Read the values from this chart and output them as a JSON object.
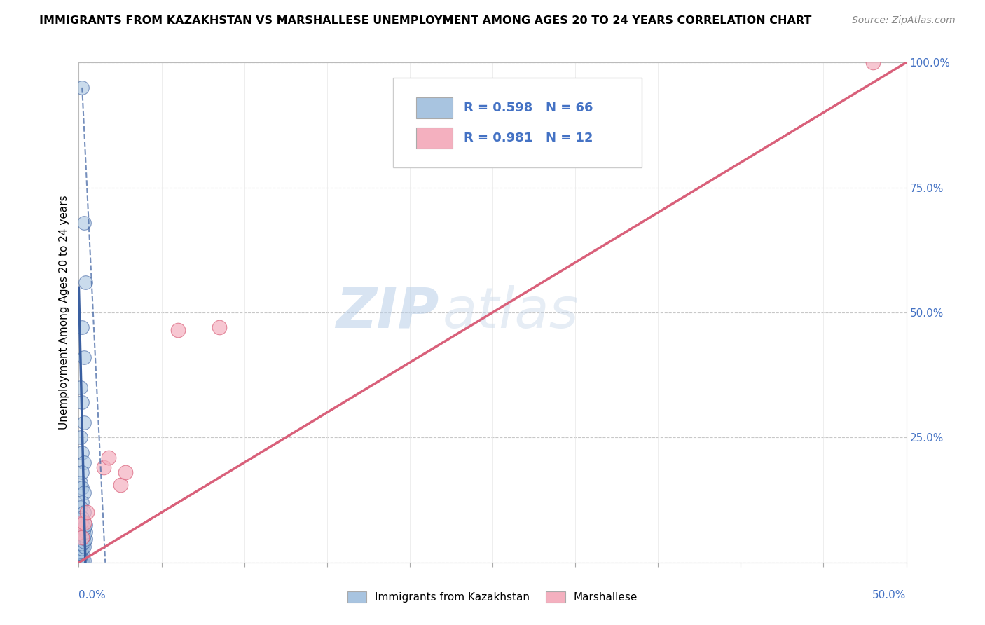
{
  "title": "IMMIGRANTS FROM KAZAKHSTAN VS MARSHALLESE UNEMPLOYMENT AMONG AGES 20 TO 24 YEARS CORRELATION CHART",
  "source": "Source: ZipAtlas.com",
  "xlabel_bottom_left": "0.0%",
  "xlabel_bottom_right": "50.0%",
  "ylabel_label": "Unemployment Among Ages 20 to 24 years",
  "xmin": 0.0,
  "xmax": 0.5,
  "ymin": 0.0,
  "ymax": 1.0,
  "yticks": [
    0.0,
    0.25,
    0.5,
    0.75,
    1.0
  ],
  "ytick_labels": [
    "",
    "25.0%",
    "50.0%",
    "75.0%",
    "100.0%"
  ],
  "legend_r1": "R = 0.598",
  "legend_n1": "N = 66",
  "legend_r2": "R = 0.981",
  "legend_n2": "N = 12",
  "watermark_zip": "ZIP",
  "watermark_atlas": "atlas",
  "blue_color": "#a8c4e0",
  "blue_line_color": "#3a5fa0",
  "pink_color": "#f4b0bf",
  "pink_line_color": "#d9607a",
  "blue_scatter": [
    [
      0.002,
      0.95
    ],
    [
      0.003,
      0.68
    ],
    [
      0.004,
      0.56
    ],
    [
      0.002,
      0.47
    ],
    [
      0.003,
      0.41
    ],
    [
      0.001,
      0.35
    ],
    [
      0.002,
      0.32
    ],
    [
      0.003,
      0.28
    ],
    [
      0.001,
      0.25
    ],
    [
      0.002,
      0.22
    ],
    [
      0.003,
      0.2
    ],
    [
      0.002,
      0.18
    ],
    [
      0.001,
      0.16
    ],
    [
      0.002,
      0.15
    ],
    [
      0.003,
      0.14
    ],
    [
      0.002,
      0.12
    ],
    [
      0.001,
      0.11
    ],
    [
      0.003,
      0.1
    ],
    [
      0.002,
      0.09
    ],
    [
      0.001,
      0.085
    ],
    [
      0.002,
      0.08
    ],
    [
      0.001,
      0.075
    ],
    [
      0.003,
      0.07
    ],
    [
      0.001,
      0.065
    ],
    [
      0.002,
      0.06
    ],
    [
      0.001,
      0.055
    ],
    [
      0.002,
      0.05
    ],
    [
      0.001,
      0.045
    ],
    [
      0.002,
      0.04
    ],
    [
      0.001,
      0.035
    ],
    [
      0.0,
      0.03
    ],
    [
      0.001,
      0.025
    ],
    [
      0.0,
      0.022
    ],
    [
      0.001,
      0.02
    ],
    [
      0.0,
      0.018
    ],
    [
      0.001,
      0.015
    ],
    [
      0.0,
      0.012
    ],
    [
      0.001,
      0.01
    ],
    [
      0.0,
      0.008
    ],
    [
      0.001,
      0.006
    ],
    [
      0.0,
      0.005
    ],
    [
      0.001,
      0.004
    ],
    [
      0.0,
      0.003
    ],
    [
      0.001,
      0.002
    ],
    [
      0.0,
      0.001
    ],
    [
      0.0,
      0.0
    ],
    [
      0.001,
      0.0
    ],
    [
      0.002,
      0.0
    ],
    [
      0.0,
      0.01
    ],
    [
      0.001,
      0.008
    ],
    [
      0.002,
      0.006
    ],
    [
      0.003,
      0.004
    ],
    [
      0.0,
      0.015
    ],
    [
      0.001,
      0.012
    ],
    [
      0.002,
      0.018
    ],
    [
      0.0,
      0.02
    ],
    [
      0.001,
      0.022
    ],
    [
      0.002,
      0.028
    ],
    [
      0.003,
      0.032
    ],
    [
      0.002,
      0.038
    ],
    [
      0.003,
      0.042
    ],
    [
      0.004,
      0.048
    ],
    [
      0.003,
      0.055
    ],
    [
      0.004,
      0.062
    ],
    [
      0.003,
      0.068
    ],
    [
      0.004,
      0.075
    ]
  ],
  "pink_scatter": [
    [
      0.0,
      0.06
    ],
    [
      0.001,
      0.08
    ],
    [
      0.002,
      0.05
    ],
    [
      0.015,
      0.19
    ],
    [
      0.018,
      0.21
    ],
    [
      0.025,
      0.155
    ],
    [
      0.028,
      0.18
    ],
    [
      0.06,
      0.465
    ],
    [
      0.085,
      0.47
    ],
    [
      0.48,
      1.0
    ],
    [
      0.003,
      0.08
    ],
    [
      0.005,
      0.1
    ]
  ],
  "blue_solid_line_x": [
    0.004,
    0.0
  ],
  "blue_solid_line_y": [
    0.0,
    0.55
  ],
  "blue_dashed_line_x": [
    0.002,
    0.016
  ],
  "blue_dashed_line_y": [
    0.95,
    0.0
  ],
  "pink_trendline_x": [
    -0.01,
    0.5
  ],
  "pink_trendline_y": [
    -0.02,
    1.0
  ],
  "legend_items": [
    "Immigrants from Kazakhstan",
    "Marshallese"
  ]
}
